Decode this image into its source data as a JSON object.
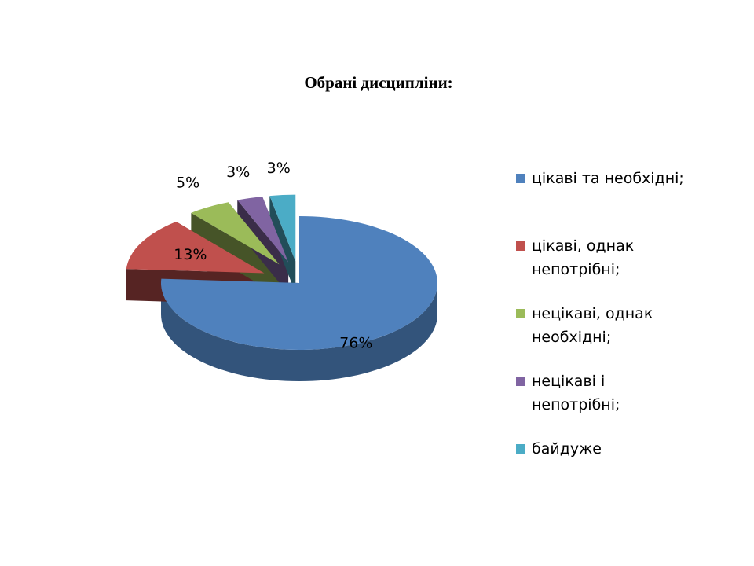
{
  "chart_data": {
    "type": "pie",
    "title": "Обрані дисципліни:",
    "categories": [
      "цікаві та необхідні;",
      "цікаві, однак непотрібні;",
      "нецікаві, однак необхідні;",
      "нецікаві і непотрібні;",
      "байдуже"
    ],
    "values": [
      76,
      13,
      5,
      3,
      3
    ],
    "value_labels": [
      "76%",
      "13%",
      "5%",
      "3%",
      "3%"
    ],
    "colors": [
      "#4f81bd",
      "#c0504d",
      "#9bbb59",
      "#8064a2",
      "#4bacc6"
    ],
    "legend": "right"
  }
}
